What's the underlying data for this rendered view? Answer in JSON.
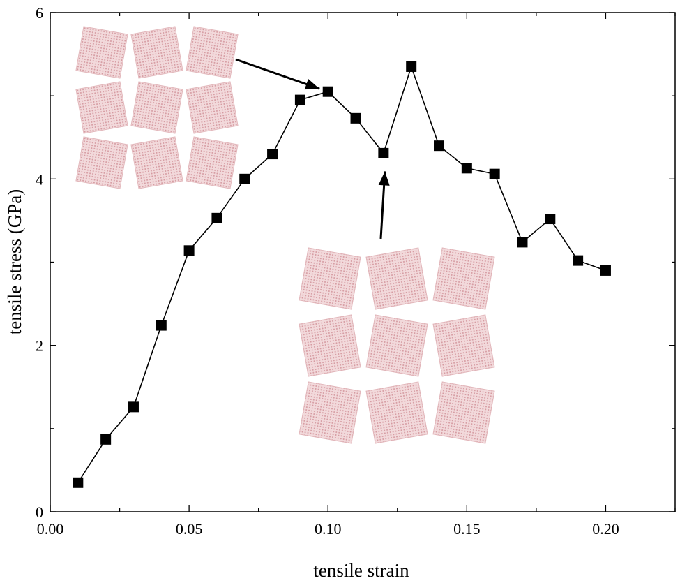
{
  "chart_data": {
    "type": "line",
    "xlabel": "tensile strain",
    "ylabel": "tensile stress (GPa)",
    "xlim": [
      0.0,
      0.225
    ],
    "ylim": [
      0,
      6
    ],
    "x_ticks": [
      {
        "value": 0.0,
        "label": "0.00"
      },
      {
        "value": 0.05,
        "label": "0.05"
      },
      {
        "value": 0.1,
        "label": "0.10"
      },
      {
        "value": 0.15,
        "label": "0.15"
      },
      {
        "value": 0.2,
        "label": "0.20"
      }
    ],
    "y_ticks": [
      {
        "value": 0,
        "label": "0"
      },
      {
        "value": 2,
        "label": "2"
      },
      {
        "value": 4,
        "label": "4"
      },
      {
        "value": 6,
        "label": "6"
      }
    ],
    "grid": false,
    "marker": "square",
    "series": [
      {
        "color": "#000000",
        "points": [
          [
            0.01,
            0.35
          ],
          [
            0.02,
            0.87
          ],
          [
            0.03,
            1.26
          ],
          [
            0.04,
            2.24
          ],
          [
            0.05,
            3.14
          ],
          [
            0.06,
            3.53
          ],
          [
            0.07,
            4.0
          ],
          [
            0.08,
            4.3
          ],
          [
            0.09,
            4.95
          ],
          [
            0.1,
            5.05
          ],
          [
            0.11,
            4.73
          ],
          [
            0.12,
            4.31
          ],
          [
            0.13,
            5.35
          ],
          [
            0.14,
            4.4
          ],
          [
            0.15,
            4.13
          ],
          [
            0.16,
            4.06
          ],
          [
            0.17,
            3.24
          ],
          [
            0.18,
            3.52
          ],
          [
            0.19,
            3.02
          ],
          [
            0.2,
            2.9
          ]
        ]
      }
    ],
    "insets": [
      {
        "name": "structure-inset-peak",
        "points_to": [
          0.1,
          5.05
        ],
        "color": "#e6b8bc"
      },
      {
        "name": "structure-inset-dip",
        "points_to": [
          0.12,
          4.31
        ],
        "color": "#e6b8bc"
      }
    ]
  }
}
